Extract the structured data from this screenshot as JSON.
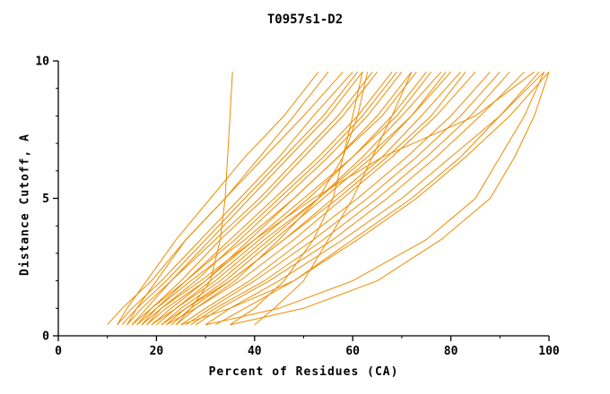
{
  "chart_data": {
    "type": "line",
    "title": "T0957s1-D2",
    "xlabel": "Percent of Residues (CA)",
    "ylabel": "Distance Cutoff, A",
    "xlim": [
      0,
      100
    ],
    "ylim": [
      0,
      10
    ],
    "x_ticks": [
      0,
      20,
      40,
      60,
      80,
      100
    ],
    "y_ticks": [
      0,
      5,
      10
    ],
    "x_minor_ticks": [
      10,
      30,
      50,
      70,
      90
    ],
    "y_minor_ticks": [
      1,
      2,
      3,
      4,
      6,
      7,
      8,
      9
    ],
    "grid": false,
    "legend": "none",
    "line_color": "#f08c00",
    "axis_color": "#000000",
    "y_samples": [
      0.4,
      1,
      2,
      3.5,
      5,
      6.5,
      8,
      9.6
    ],
    "series_x": [
      [
        24,
        27,
        31,
        33,
        34,
        34.5,
        35,
        35.5
      ],
      [
        10,
        13,
        19,
        26,
        34,
        41,
        48,
        55
      ],
      [
        12,
        15,
        21,
        29,
        37,
        45,
        52,
        60
      ],
      [
        14,
        16,
        20,
        26,
        34,
        42,
        50,
        58
      ],
      [
        15,
        18,
        23,
        31,
        39,
        47,
        55,
        62
      ],
      [
        16,
        19,
        25,
        33,
        42,
        50,
        58,
        65
      ],
      [
        17,
        20,
        26,
        35,
        44,
        53,
        61,
        68
      ],
      [
        18,
        21,
        28,
        37,
        46,
        55,
        63,
        70
      ],
      [
        19,
        23,
        30,
        39,
        48,
        57,
        65,
        72
      ],
      [
        20,
        24,
        31,
        41,
        51,
        60,
        68,
        75
      ],
      [
        21,
        25,
        33,
        43,
        53,
        62,
        70,
        78
      ],
      [
        22,
        26,
        34,
        44,
        54,
        64,
        72,
        80
      ],
      [
        23,
        27,
        35,
        46,
        56,
        66,
        74,
        82
      ],
      [
        24,
        28,
        37,
        48,
        58,
        68,
        77,
        85
      ],
      [
        25,
        30,
        39,
        50,
        61,
        71,
        80,
        88
      ],
      [
        26,
        31,
        40,
        52,
        63,
        73,
        82,
        90
      ],
      [
        27,
        32,
        42,
        54,
        65,
        75,
        84,
        92
      ],
      [
        28,
        33,
        43,
        56,
        67,
        77,
        86,
        95
      ],
      [
        30,
        35,
        45,
        58,
        70,
        80,
        90,
        98
      ],
      [
        32,
        38,
        48,
        61,
        73,
        83,
        92,
        100
      ],
      [
        18,
        22,
        30,
        40,
        52,
        66,
        85,
        97
      ],
      [
        25,
        35,
        48,
        60,
        72,
        82,
        90,
        99
      ],
      [
        30,
        45,
        60,
        75,
        85,
        90,
        95,
        99
      ],
      [
        13,
        16,
        22,
        30,
        38,
        46,
        54,
        61
      ],
      [
        14,
        17,
        23,
        32,
        41,
        49,
        57,
        64
      ],
      [
        15,
        19,
        26,
        36,
        45,
        54,
        62,
        69
      ],
      [
        16,
        20,
        27,
        38,
        48,
        57,
        66,
        73
      ],
      [
        17,
        21,
        29,
        40,
        50,
        60,
        69,
        76
      ],
      [
        19,
        24,
        32,
        42,
        53,
        63,
        72,
        79
      ],
      [
        21,
        26,
        35,
        46,
        57,
        67,
        76,
        83
      ],
      [
        35,
        40,
        46,
        52,
        56,
        58,
        60,
        62
      ],
      [
        40,
        44,
        50,
        55,
        60,
        64,
        68,
        72
      ],
      [
        35,
        50,
        65,
        78,
        88,
        93,
        97,
        100
      ],
      [
        12,
        14,
        18,
        24,
        31,
        38,
        46,
        53
      ],
      [
        22,
        28,
        36,
        45,
        53,
        58,
        61,
        63
      ]
    ]
  }
}
